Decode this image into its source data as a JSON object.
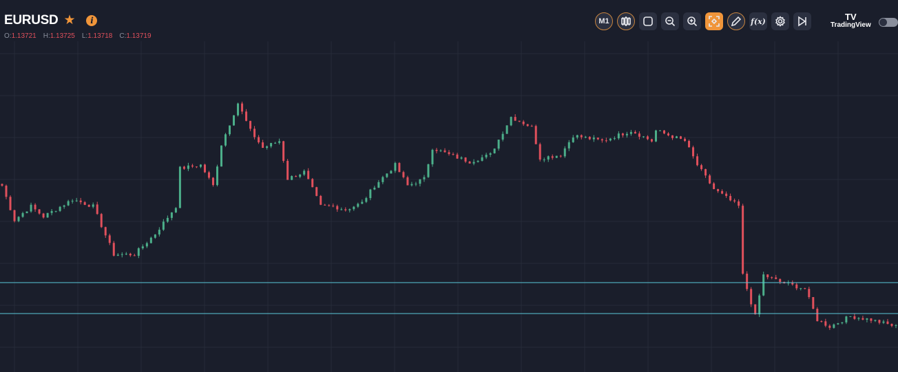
{
  "header": {
    "symbol": "EURUSD",
    "ohlc": {
      "o_label": "O:",
      "o": "1.13721",
      "h_label": "H:",
      "h": "1.13725",
      "l_label": "L:",
      "l": "1.13718",
      "c_label": "C:",
      "c": "1.13719"
    }
  },
  "toolbar": {
    "timeframe": "M1",
    "buttons": [
      "timeframe",
      "candles",
      "square",
      "zoom-out",
      "zoom-in",
      "fit",
      "draw",
      "functions",
      "settings",
      "go-to-end"
    ]
  },
  "brand": {
    "logo": "TV",
    "name": "TradingView"
  },
  "colors": {
    "bg": "#1a1e2b",
    "grid": "#262b38",
    "up": "#4caf8a",
    "down": "#e0505c",
    "line": "#5ac8d8",
    "accent": "#f0953a"
  },
  "chart_data": {
    "type": "candlestick",
    "symbol": "EURUSD",
    "timeframe": "M1",
    "candle_count": 217,
    "ylim": [
      1.13587,
      1.14669
    ],
    "grid": true,
    "horizontal_lines": [
      1.13847,
      1.13757
    ],
    "close_waypoints": [
      [
        0,
        1.14129
      ],
      [
        3,
        1.14029
      ],
      [
        7,
        1.14069
      ],
      [
        10,
        1.14039
      ],
      [
        17,
        1.14089
      ],
      [
        22,
        1.14069
      ],
      [
        27,
        1.13929
      ],
      [
        32,
        1.13929
      ],
      [
        37,
        1.13989
      ],
      [
        42,
        1.14069
      ],
      [
        43,
        1.14179
      ],
      [
        48,
        1.14189
      ],
      [
        51,
        1.14129
      ],
      [
        53,
        1.14249
      ],
      [
        57,
        1.14369
      ],
      [
        60,
        1.14289
      ],
      [
        63,
        1.14239
      ],
      [
        67,
        1.14259
      ],
      [
        69,
        1.14149
      ],
      [
        73,
        1.14169
      ],
      [
        77,
        1.14069
      ],
      [
        80,
        1.14069
      ],
      [
        83,
        1.14059
      ],
      [
        87,
        1.14079
      ],
      [
        90,
        1.14129
      ],
      [
        95,
        1.14189
      ],
      [
        98,
        1.14129
      ],
      [
        102,
        1.14149
      ],
      [
        104,
        1.14239
      ],
      [
        108,
        1.14219
      ],
      [
        113,
        1.14199
      ],
      [
        118,
        1.14219
      ],
      [
        123,
        1.14329
      ],
      [
        128,
        1.14299
      ],
      [
        130,
        1.14209
      ],
      [
        135,
        1.14219
      ],
      [
        138,
        1.14275
      ],
      [
        145,
        1.14259
      ],
      [
        152,
        1.14289
      ],
      [
        157,
        1.14259
      ],
      [
        158,
        1.14289
      ],
      [
        165,
        1.14259
      ],
      [
        168,
        1.14189
      ],
      [
        172,
        1.14119
      ],
      [
        178,
        1.14069
      ],
      [
        179,
        1.13869
      ],
      [
        182,
        1.13749
      ],
      [
        184,
        1.13869
      ],
      [
        188,
        1.13849
      ],
      [
        194,
        1.13829
      ],
      [
        197,
        1.13739
      ],
      [
        200,
        1.13719
      ],
      [
        205,
        1.13749
      ],
      [
        210,
        1.13739
      ],
      [
        216,
        1.13719
      ]
    ]
  }
}
